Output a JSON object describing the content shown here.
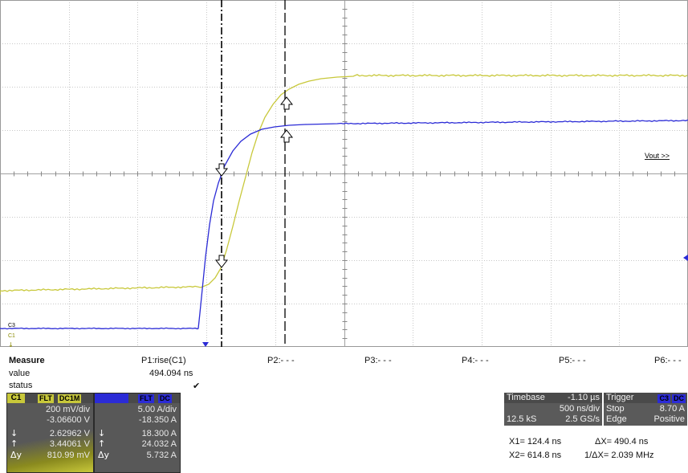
{
  "channels": {
    "c3_color": "#2b2bd6",
    "c1_color": "#c8c83a",
    "c3_marker": "C3",
    "c1_marker": "C1"
  },
  "trace_label": "Vout >>",
  "measure": {
    "header": "Measure",
    "row_value": "value",
    "row_status": "status",
    "params": [
      {
        "name": "P1:rise(C1)",
        "value": "494.094 ns",
        "status": "✔"
      },
      {
        "name": "P2:- - -"
      },
      {
        "name": "P3:- - -"
      },
      {
        "name": "P4:- - -"
      },
      {
        "name": "P5:- - -"
      },
      {
        "name": "P6:- - -"
      }
    ]
  },
  "c1_box": {
    "id": "C1",
    "badges": [
      "FLT",
      "DC1M"
    ],
    "scale": "200 mV/div",
    "offset": "-3.06600 V",
    "lines": [
      {
        "label": "↓",
        "value": "2.62962 V"
      },
      {
        "label": "↑",
        "value": "3.44061 V"
      },
      {
        "label": "Δy",
        "value": "810.99 mV"
      }
    ]
  },
  "c3_box": {
    "badges": [
      "FLT",
      "DC"
    ],
    "scale": "5.00 A/div",
    "offset": "-18.350 A",
    "lines": [
      {
        "label": "↓",
        "value": "18.300 A"
      },
      {
        "label": "↑",
        "value": "24.032 A"
      },
      {
        "label": "Δy",
        "value": "5.732 A"
      }
    ]
  },
  "timebase": {
    "label": "Timebase",
    "delay": "-1.10 µs",
    "per_div": "500 ns/div",
    "samples": "12.5 kS",
    "rate": "2.5 GS/s"
  },
  "trigger": {
    "label": "Trigger",
    "source": "C3",
    "coupling": "DC",
    "mode": "Stop",
    "level": "8.70 A",
    "type": "Edge",
    "slope": "Positive"
  },
  "cursors": {
    "x1": "X1= 124.4 ns",
    "dx": "ΔX= 490.4 ns",
    "x2": "X2= 614.8 ns",
    "inv_dx": "1/ΔX= 2.039 MHz"
  }
}
